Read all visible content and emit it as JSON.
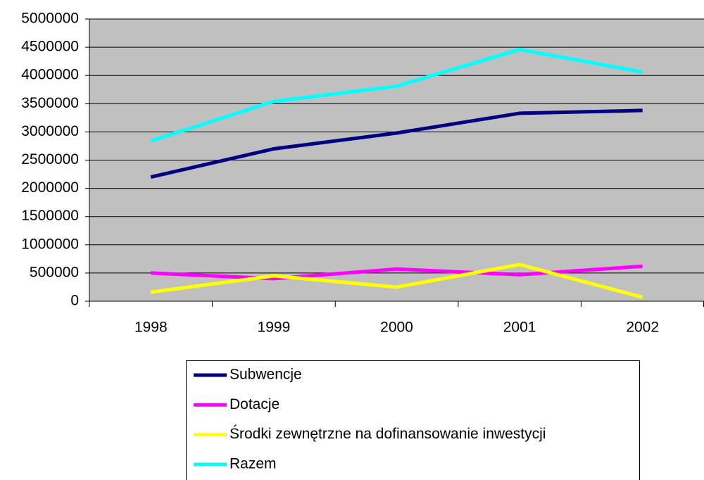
{
  "chart_data": {
    "type": "line",
    "categories": [
      "1998",
      "1999",
      "2000",
      "2001",
      "2002"
    ],
    "series": [
      {
        "name": "Subwencje",
        "color": "#000080",
        "values": [
          2200000,
          2700000,
          2980000,
          3330000,
          3380000
        ]
      },
      {
        "name": "Dotacje",
        "color": "#ff00ff",
        "values": [
          500000,
          400000,
          570000,
          470000,
          620000
        ]
      },
      {
        "name": "Środki zewnętrzne na dofinansowanie inwestycji",
        "color": "#ffff00",
        "values": [
          160000,
          450000,
          250000,
          650000,
          70000
        ]
      },
      {
        "name": "Razem",
        "color": "#00ffff",
        "values": [
          2840000,
          3540000,
          3810000,
          4460000,
          4060000
        ]
      }
    ],
    "ylim": [
      0,
      5000000
    ],
    "yticks": [
      0,
      500000,
      1000000,
      1500000,
      2000000,
      2500000,
      3000000,
      3500000,
      4000000,
      4500000,
      5000000
    ],
    "grid": true,
    "legend": "bottom"
  }
}
